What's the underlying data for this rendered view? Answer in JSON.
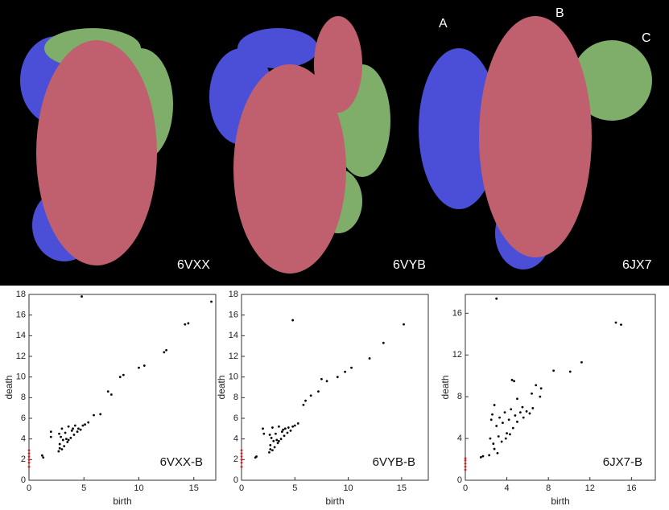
{
  "panels": [
    {
      "label": "6VXX"
    },
    {
      "label": "6VYB"
    },
    {
      "label": "6JX7"
    }
  ],
  "chain_labels": [
    "A",
    "B",
    "C"
  ],
  "chart_data": [
    {
      "type": "scatter",
      "annotation": "6VXX-B",
      "xlabel": "birth",
      "ylabel": "death",
      "xlim": [
        0,
        17
      ],
      "ylim": [
        0,
        18
      ],
      "xticks": [
        0,
        5,
        10,
        15
      ],
      "yticks": [
        0,
        2,
        4,
        6,
        8,
        10,
        12,
        14,
        16,
        18
      ],
      "series": [
        {
          "color": "#000000",
          "x": [
            4.8,
            16.6,
            14.5,
            14.2,
            12.5,
            12.3,
            10.5,
            10.0,
            8.6,
            8.3,
            7.2,
            7.5,
            6.5,
            5.9,
            1.3,
            1.2,
            2.0,
            2.0,
            2.7,
            2.8,
            2.9,
            3.0,
            3.2,
            3.3,
            3.5,
            3.6,
            3.8,
            3.9,
            4.1,
            4.2,
            4.4,
            4.5,
            4.7,
            4.9,
            5.1,
            5.4,
            3.1,
            2.8,
            3.4,
            4.0,
            2.75,
            3.0,
            3.6
          ],
          "values": [
            17.8,
            17.3,
            15.2,
            15.1,
            12.6,
            12.4,
            11.1,
            10.9,
            10.2,
            10.0,
            8.6,
            8.3,
            6.4,
            6.3,
            2.2,
            2.4,
            4.7,
            4.2,
            2.8,
            3.5,
            4.2,
            5.0,
            3.3,
            4.6,
            3.7,
            5.2,
            4.1,
            4.8,
            4.4,
            5.3,
            4.7,
            5.0,
            4.9,
            5.3,
            5.4,
            5.6,
            3.9,
            3.1,
            4.0,
            5.0,
            4.5,
            3.0,
            3.9
          ]
        },
        {
          "color": "#e02020",
          "x": [
            0,
            0,
            0,
            0,
            0,
            0
          ],
          "values": [
            1.3,
            1.7,
            2.0,
            2.3,
            2.6,
            2.9
          ]
        }
      ]
    },
    {
      "type": "scatter",
      "annotation": "6VYB-B",
      "xlabel": "birth",
      "ylabel": "death",
      "xlim": [
        0,
        17.5
      ],
      "ylim": [
        0,
        18
      ],
      "xticks": [
        0,
        5,
        10,
        15
      ],
      "yticks": [
        0,
        2,
        4,
        6,
        8,
        10,
        12,
        14,
        16,
        18
      ],
      "series": [
        {
          "color": "#000000",
          "x": [
            4.8,
            15.2,
            12.0,
            13.3,
            10.3,
            9.7,
            9.0,
            8.0,
            7.5,
            7.2,
            6.5,
            6.0,
            5.8,
            1.3,
            1.4,
            2.0,
            2.1,
            2.6,
            2.7,
            2.8,
            2.9,
            3.1,
            3.2,
            3.4,
            3.5,
            3.7,
            3.8,
            4.0,
            4.1,
            4.3,
            4.4,
            4.6,
            4.8,
            5.0,
            5.3,
            3.0,
            2.7,
            3.3,
            3.9,
            2.65,
            2.9,
            3.5
          ],
          "values": [
            15.5,
            15.1,
            11.8,
            13.3,
            10.9,
            10.5,
            10.0,
            9.6,
            9.8,
            8.6,
            8.2,
            7.7,
            7.3,
            2.2,
            2.3,
            5.0,
            4.5,
            2.7,
            3.4,
            4.1,
            5.1,
            3.2,
            4.5,
            3.6,
            5.2,
            4.0,
            4.7,
            4.3,
            5.0,
            4.6,
            5.1,
            4.8,
            5.2,
            5.3,
            5.5,
            3.8,
            3.0,
            3.9,
            4.9,
            4.4,
            2.9,
            3.8
          ]
        },
        {
          "color": "#e02020",
          "x": [
            0,
            0,
            0,
            0,
            0,
            0
          ],
          "values": [
            1.3,
            1.7,
            2.0,
            2.3,
            2.6,
            2.9
          ]
        }
      ]
    },
    {
      "type": "scatter",
      "annotation": "6JX7-B",
      "xlabel": "birth",
      "ylabel": "death",
      "xlim": [
        0,
        18.3
      ],
      "ylim": [
        0,
        17.8
      ],
      "xticks": [
        0,
        4,
        8,
        12,
        16
      ],
      "yticks": [
        0,
        4,
        8,
        12,
        16
      ],
      "series": [
        {
          "color": "#000000",
          "x": [
            3.0,
            14.5,
            15.0,
            11.2,
            10.1,
            8.5,
            4.5,
            4.7,
            6.8,
            7.3,
            7.2,
            6.4,
            5.0,
            2.8,
            5.5,
            1.5,
            1.7,
            2.3,
            2.4,
            2.5,
            2.6,
            2.8,
            3.0,
            3.2,
            3.3,
            3.5,
            3.6,
            3.8,
            4.0,
            4.2,
            4.4,
            4.6,
            4.8,
            5.0,
            5.3,
            5.6,
            5.9,
            6.2,
            6.5,
            2.7,
            3.1,
            3.9,
            4.3
          ],
          "values": [
            17.4,
            15.1,
            14.9,
            11.3,
            10.4,
            10.5,
            9.6,
            9.5,
            9.1,
            8.8,
            8.0,
            8.3,
            7.8,
            7.2,
            7.0,
            2.2,
            2.3,
            2.4,
            4.0,
            5.8,
            6.3,
            3.0,
            5.2,
            4.2,
            6.0,
            3.7,
            5.5,
            6.5,
            4.5,
            5.8,
            6.8,
            5.0,
            6.2,
            5.6,
            6.5,
            6.0,
            6.6,
            6.4,
            6.9,
            3.5,
            2.6,
            4.0,
            4.4
          ]
        },
        {
          "color": "#e02020",
          "x": [
            0,
            0,
            0,
            0,
            0
          ],
          "values": [
            1.0,
            1.3,
            1.6,
            1.9,
            2.1
          ]
        }
      ]
    }
  ]
}
